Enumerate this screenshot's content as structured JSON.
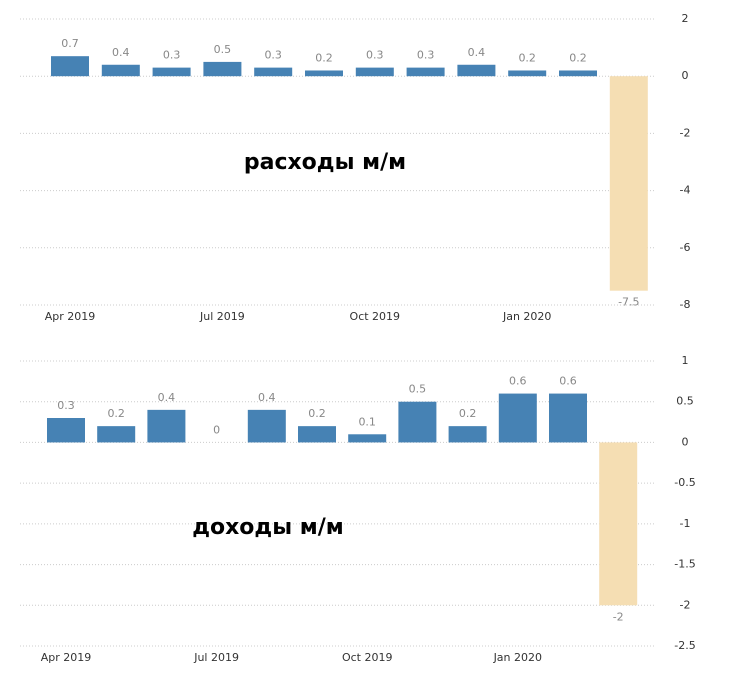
{
  "chart_data": [
    {
      "type": "bar",
      "annotation": "расходы м/м",
      "categories": [
        "Apr 2019",
        null,
        null,
        "Jul 2019",
        null,
        null,
        "Oct 2019",
        null,
        null,
        "Jan 2020",
        null,
        null
      ],
      "values": [
        0.7,
        0.4,
        0.3,
        0.5,
        0.3,
        0.2,
        0.3,
        0.3,
        0.4,
        0.2,
        0.2,
        -7.5
      ],
      "colors": [
        "#4682b4",
        "#4682b4",
        "#4682b4",
        "#4682b4",
        "#4682b4",
        "#4682b4",
        "#4682b4",
        "#4682b4",
        "#4682b4",
        "#4682b4",
        "#4682b4",
        "#f5deb3"
      ],
      "ylim": [
        -8,
        2
      ],
      "yticks": [
        2,
        0,
        -2,
        -4,
        -6,
        -8
      ],
      "grid": true
    },
    {
      "type": "bar",
      "annotation": "доходы м/м",
      "categories": [
        "Apr 2019",
        null,
        null,
        "Jul 2019",
        null,
        null,
        "Oct 2019",
        null,
        null,
        "Jan 2020",
        null,
        null
      ],
      "values": [
        0.3,
        0.2,
        0.4,
        0,
        0.4,
        0.2,
        0.1,
        0.5,
        0.2,
        0.6,
        0.6,
        -2
      ],
      "colors": [
        "#4682b4",
        "#4682b4",
        "#4682b4",
        "#4682b4",
        "#4682b4",
        "#4682b4",
        "#4682b4",
        "#4682b4",
        "#4682b4",
        "#4682b4",
        "#4682b4",
        "#f5deb3"
      ],
      "ylim": [
        -2.5,
        1
      ],
      "yticks": [
        1,
        0.5,
        0,
        -0.5,
        -1,
        -1.5,
        -2,
        -2.5
      ],
      "grid": true
    }
  ]
}
